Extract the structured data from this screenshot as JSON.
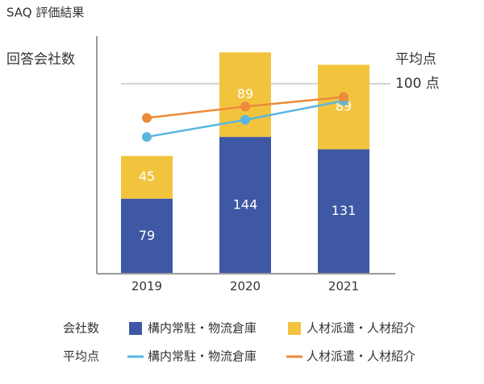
{
  "chart_data": {
    "type": "bar",
    "title": "SAQ 評価結果",
    "y_label": "回答会社数",
    "y2_label": "平均点",
    "categories": [
      "2019",
      "2020",
      "2021"
    ],
    "ylim": [
      0,
      250
    ],
    "y2lim": [
      0,
      125
    ],
    "y2ticks": [
      {
        "value": 100,
        "label": "100 点"
      }
    ],
    "legend_titles": {
      "bars": "会社数",
      "lines": "平均点"
    },
    "series": [
      {
        "name": "構内常駐・物流倉庫",
        "type": "bar",
        "color": "#3f58a6",
        "values": [
          79,
          144,
          131
        ]
      },
      {
        "name": "人材派遣・人材紹介",
        "type": "bar",
        "color": "#f2c43d",
        "values": [
          45,
          89,
          89
        ]
      },
      {
        "name": "構内常駐・物流倉庫",
        "type": "line",
        "axis": "y2",
        "color": "#5ab6e0",
        "values": [
          72,
          81,
          91
        ]
      },
      {
        "name": "人材派遣・人材紹介",
        "type": "line",
        "axis": "y2",
        "color": "#ec8a3a",
        "values": [
          82,
          88,
          93
        ]
      }
    ]
  }
}
